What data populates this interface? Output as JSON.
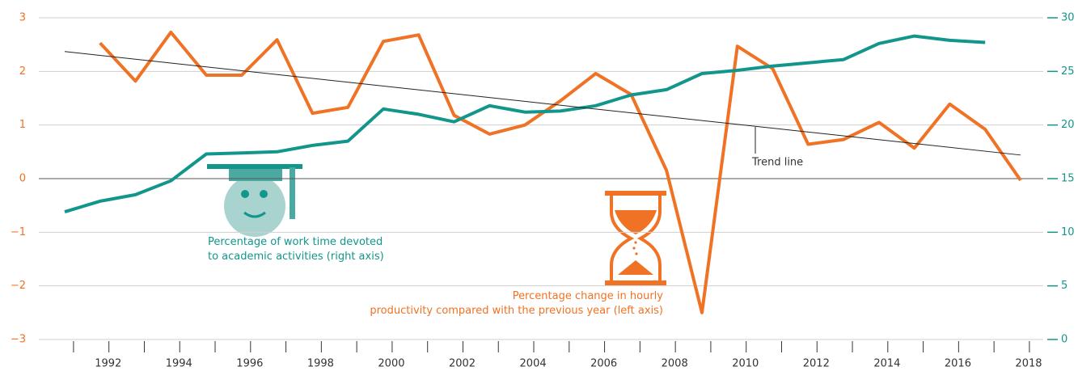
{
  "chart_data": {
    "type": "line",
    "x": [
      1991,
      1992,
      1993,
      1994,
      1995,
      1996,
      1997,
      1998,
      1999,
      2000,
      2001,
      2002,
      2003,
      2004,
      2005,
      2006,
      2007,
      2008,
      2009,
      2010,
      2011,
      2012,
      2013,
      2014,
      2015,
      2016,
      2017,
      2018
    ],
    "series": [
      {
        "name": "Percentage change in hourly productivity compared with the previous year (left axis)",
        "color": "#f07224",
        "values": [
          null,
          2.53,
          1.82,
          2.73,
          1.93,
          1.93,
          2.59,
          1.22,
          1.33,
          2.56,
          2.68,
          1.18,
          0.83,
          1.0,
          1.45,
          1.96,
          1.57,
          0.15,
          -2.5,
          2.47,
          2.05,
          0.64,
          0.73,
          1.05,
          0.57,
          1.39,
          0.92,
          -0.03
        ]
      },
      {
        "name": "Percentage of work time devoted to academic activities (right axis)",
        "color": "#12968c",
        "axis": "y2",
        "values": [
          11.9,
          12.9,
          13.5,
          14.8,
          17.3,
          17.4,
          17.5,
          18.1,
          18.5,
          21.5,
          21.0,
          20.3,
          21.8,
          21.2,
          21.3,
          21.8,
          22.8,
          23.3,
          24.8,
          25.1,
          25.5,
          25.8,
          26.1,
          27.6,
          28.3,
          27.9,
          27.7,
          null
        ]
      }
    ],
    "trend": {
      "label": "Trend line",
      "x": [
        1991,
        2018
      ],
      "values": [
        2.37,
        0.44
      ]
    },
    "xlim": [
      1990.27,
      2018.64
    ],
    "xticks": [
      1992,
      1994,
      1996,
      1998,
      2000,
      2002,
      2004,
      2006,
      2008,
      2010,
      2012,
      2014,
      2016,
      2018
    ],
    "ylim": [
      -3,
      3
    ],
    "yticks": [
      {
        "value": -3,
        "label": "−3"
      },
      {
        "value": -2,
        "label": "−2"
      },
      {
        "value": -1,
        "label": "−1"
      },
      0,
      1,
      2,
      3
    ],
    "y2lim": [
      0,
      30
    ],
    "y2ticks": [
      0,
      5,
      10,
      15,
      20,
      25,
      30
    ],
    "grid": true
  }
}
